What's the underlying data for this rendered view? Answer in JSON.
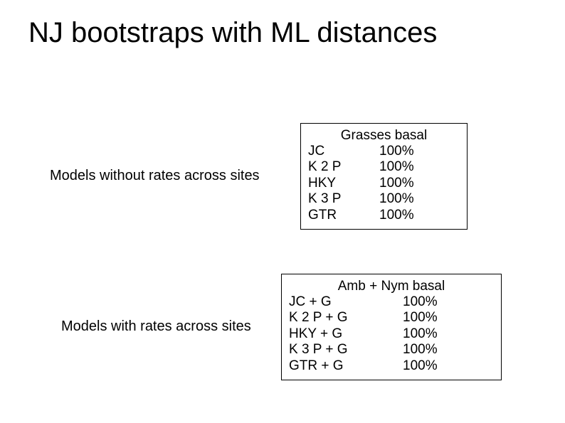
{
  "title": "NJ bootstraps with ML distances",
  "section1": {
    "label": "Models without rates across sites",
    "header": "Grasses basal",
    "rows": [
      {
        "model": "JC",
        "value": "100%"
      },
      {
        "model": "K 2 P",
        "value": "100%"
      },
      {
        "model": "HKY",
        "value": "100%"
      },
      {
        "model": "K 3 P",
        "value": "100%"
      },
      {
        "model": "GTR",
        "value": "100%"
      }
    ]
  },
  "section2": {
    "label": "Models with rates across sites",
    "header": "Amb + Nym basal",
    "rows": [
      {
        "model": "JC + G",
        "value": "100%"
      },
      {
        "model": "K 2 P + G",
        "value": "100%"
      },
      {
        "model": "HKY + G",
        "value": "100%"
      },
      {
        "model": "K 3 P + G",
        "value": "100%"
      },
      {
        "model": "GTR + G",
        "value": "100%"
      }
    ]
  },
  "style": {
    "background_color": "#ffffff",
    "text_color": "#000000",
    "border_color": "#000000",
    "title_fontsize": 40,
    "label_fontsize": 20,
    "body_fontsize": 19,
    "font_family": "Arial"
  }
}
